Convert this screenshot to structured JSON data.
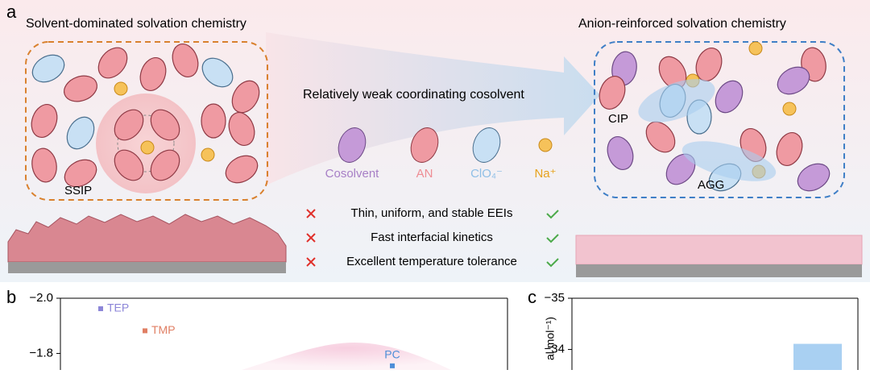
{
  "panel_a": {
    "label": "a",
    "left": {
      "title": "Solvent-dominated solvation chemistry",
      "cluster": "SSIP"
    },
    "arrow_label": "Relatively weak coordinating cosolvent",
    "right": {
      "title": "Anion-reinforced solvation chemistry",
      "clusters": [
        "CIP",
        "AGG"
      ]
    },
    "legend": [
      {
        "name": "Cosolvent",
        "color": "#a77fc6"
      },
      {
        "name": "AN",
        "color": "#ee8d94"
      },
      {
        "name": "ClO₄⁻",
        "color": "#8fbfe6"
      },
      {
        "name": "Na⁺",
        "color": "#e7a21c"
      }
    ],
    "properties": [
      "Thin, uniform, and stable EEIs",
      "Fast interfacial kinetics",
      "Excellent temperature tolerance"
    ]
  },
  "panel_b": {
    "label": "b",
    "ylim": [
      -2.0,
      -1.74
    ],
    "yticks": [
      {
        "value": -2.0,
        "label": "−2.0"
      },
      {
        "value": -1.8,
        "label": "−1.8"
      }
    ],
    "points": [
      {
        "name": "TEP",
        "y": -1.962,
        "color": "#8c86d8"
      },
      {
        "name": "TMP",
        "y": -1.882,
        "color": "#e07f64"
      },
      {
        "name": "PC",
        "y": -1.755,
        "color": "#4d8ed8"
      }
    ]
  },
  "panel_c": {
    "label": "c",
    "ylabel": "al mol⁻¹)",
    "ylim": [
      -35,
      -33.6
    ],
    "yticks": [
      {
        "value": -35,
        "label": "−35"
      },
      {
        "value": -34,
        "label": "−34"
      }
    ],
    "bar": {
      "value": -34.11,
      "color": "#a9d0f2"
    }
  }
}
